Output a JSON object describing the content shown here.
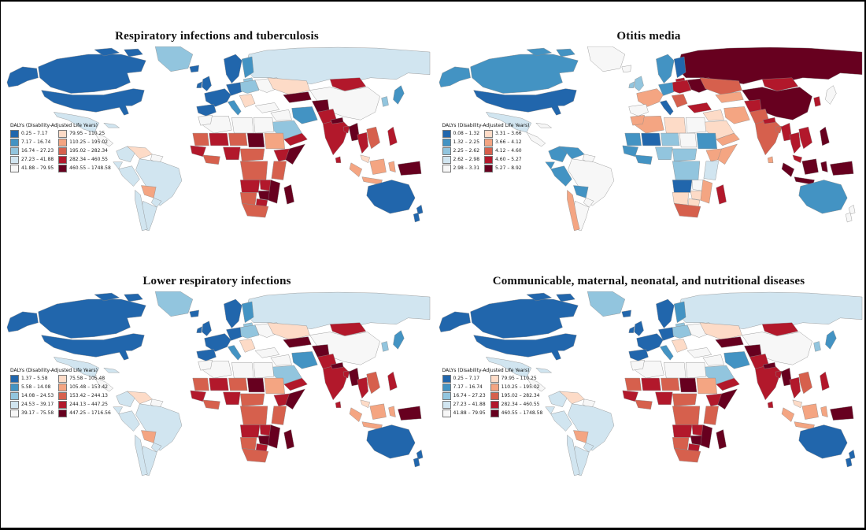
{
  "figure": {
    "background": "#ffffff",
    "frame_border_color": "#000000"
  },
  "palette": {
    "classes": [
      "#2166ac",
      "#4393c3",
      "#92c5de",
      "#d1e5f0",
      "#f7f7f7",
      "#fddbc7",
      "#f4a582",
      "#d6604d",
      "#b2182b",
      "#67001f"
    ],
    "no_data": "#ffffff",
    "country_border": "#888888",
    "ocean": "#ffffff"
  },
  "chart_data": {
    "type": "heatmap",
    "subtype": "choropleth-world-map-grid",
    "layout": "2x2",
    "unit_label": "DALYs (Disability-Adjusted Life Years)",
    "color_scheme": "blue = low burden, red = high burden (RdBu diverging, 10 classes)",
    "maps": [
      {
        "id": "respiratory-tuberculosis",
        "title": "Respiratory infections and tuberculosis",
        "legend_title": "DALYs (Disability-Adjusted Life Years)",
        "legend": {
          "blue": [
            "0.25 – 7.17",
            "7.17 – 16.74",
            "16.74 – 27.23",
            "27.23 – 41.88",
            "41.88 – 79.95"
          ],
          "red": [
            "79.95 – 110.25",
            "110.25 – 195.02",
            "195.02 – 282.34",
            "282.34 – 460.55",
            "460.55 – 1748.58"
          ]
        },
        "regions": {
          "alaska": 1,
          "canada": 1,
          "arctic-1": 1,
          "arctic-2": 1,
          "greenland": 3,
          "usa": 1,
          "mexico": 4,
          "central-america": 5,
          "cuba": 4,
          "colombia": 4,
          "venezuela": 6,
          "guyanas": 5,
          "ecuador": 4,
          "peru": 4,
          "brazil": 4,
          "bolivia": 7,
          "paraguay": 4,
          "argentina": 4,
          "chile": 4,
          "iceland": 1,
          "uk": 1,
          "ireland": 1,
          "norway-sweden": 1,
          "finland": 2,
          "baltics": 3,
          "germany-central": 1,
          "west-europe": 1,
          "iberia": 1,
          "italy": 2,
          "east-europe": 3,
          "balkans": 6,
          "ukraine": 5,
          "russia": 4,
          "kazakhstan": 6,
          "uzbek-turkmen": 10,
          "mongolia": 9,
          "china": 5,
          "korea": 3,
          "japan": 2,
          "turkey": 5,
          "syria-iraq": 5,
          "iran": 2,
          "afghanistan": 10,
          "pakistan": 9,
          "saudi": 3,
          "yemen-oman": 9,
          "algeria": 5,
          "morocco": 5,
          "libya": 5,
          "egypt": 5,
          "mauritania": 8,
          "mali": 9,
          "niger": 8,
          "chad": 10,
          "sudan": 7,
          "senegal-guinea": 9,
          "ivory-ghana": 8,
          "nigeria": 9,
          "cameroon-car": 8,
          "ethiopia": 9,
          "somalia": 10,
          "kenya-tanzania": 8,
          "drc": 8,
          "angola": 9,
          "zambia": 9,
          "zimbabwe": 10,
          "mozambique": 10,
          "namibia": 8,
          "botswana": 9,
          "south-africa": 8,
          "madagascar": 10,
          "india": 9,
          "nepal": 10,
          "bangladesh": 9,
          "sri-lanka": 9,
          "myanmar": 10,
          "thailand": 9,
          "vietnam-laos": 8,
          "malaysia": 6,
          "philippines": 9,
          "sumatra": 7,
          "borneo": 7,
          "java": 7,
          "sulawesi": 7,
          "papua": 10,
          "australia": 1,
          "nz-north": 1,
          "nz-south": 1
        }
      },
      {
        "id": "otitis-media",
        "title": "Otitis media",
        "legend_title": "DALYs (Disability-Adjusted Life Years)",
        "legend": {
          "blue": [
            "0.08 – 1.32",
            "1.32 – 2.25",
            "2.25 – 2.62",
            "2.62 – 2.98",
            "2.98 – 3.31"
          ],
          "red": [
            "3.31 – 3.66",
            "3.66 – 4.12",
            "4.12 – 4.60",
            "4.60 – 5.27",
            "5.27 – 8.92"
          ]
        },
        "regions": {
          "alaska": 2,
          "canada": 2,
          "arctic-1": 2,
          "arctic-2": 2,
          "greenland": 5,
          "usa": 1,
          "mexico": 4,
          "central-america": 5,
          "cuba": 5,
          "colombia": 2,
          "venezuela": 2,
          "guyanas": 5,
          "ecuador": 2,
          "peru": 2,
          "brazil": 5,
          "bolivia": 2,
          "paraguay": 5,
          "argentina": 5,
          "chile": 7,
          "iceland": 5,
          "uk": 3,
          "ireland": 3,
          "norway-sweden": 2,
          "finland": 1,
          "baltics": 9,
          "germany-central": 2,
          "west-europe": 7,
          "iberia": 5,
          "italy": 1,
          "east-europe": 9,
          "balkans": 8,
          "ukraine": 10,
          "russia": 10,
          "kazakhstan": 8,
          "uzbek-turkmen": 7,
          "mongolia": 9,
          "china": 10,
          "korea": 9,
          "japan": 5,
          "turkey": 9,
          "syria-iraq": 6,
          "iran": 7,
          "afghanistan": 9,
          "pakistan": 8,
          "saudi": 6,
          "yemen-oman": 7,
          "algeria": 7,
          "morocco": 7,
          "libya": 6,
          "egypt": 5,
          "mauritania": 2,
          "mali": 1,
          "niger": 3,
          "chad": 5,
          "sudan": 2,
          "senegal-guinea": 2,
          "ivory-ghana": 2,
          "nigeria": 3,
          "cameroon-car": 3,
          "ethiopia": 7,
          "somalia": 7,
          "kenya-tanzania": 4,
          "drc": 3,
          "angola": 1,
          "zambia": 5,
          "zimbabwe": 6,
          "mozambique": 7,
          "namibia": 6,
          "botswana": 6,
          "south-africa": 8,
          "madagascar": 9,
          "india": 8,
          "nepal": 9,
          "bangladesh": 8,
          "sri-lanka": 7,
          "myanmar": 9,
          "thailand": 9,
          "vietnam-laos": 9,
          "malaysia": 9,
          "philippines": 10,
          "sumatra": 10,
          "borneo": 10,
          "java": 10,
          "sulawesi": 10,
          "papua": 10,
          "australia": 2,
          "nz-north": 5,
          "nz-south": 5
        }
      },
      {
        "id": "lower-respiratory-infections",
        "title": "Lower respiratory infections",
        "legend_title": "DALYs (Disability-Adjusted Life Years)",
        "legend": {
          "blue": [
            "1.37 – 5.58",
            "5.58 – 14.08",
            "14.08 – 24.53",
            "24.53 – 39.17",
            "39.17 – 75.58"
          ],
          "red": [
            "75.58 – 105.48",
            "105.48 – 153.42",
            "153.42 – 244.13",
            "244.13 – 447.25",
            "447.25 – 1716.56"
          ]
        },
        "regions": {
          "alaska": 1,
          "canada": 1,
          "arctic-1": 1,
          "arctic-2": 1,
          "greenland": 3,
          "usa": 1,
          "mexico": 4,
          "central-america": 5,
          "cuba": 4,
          "colombia": 4,
          "venezuela": 6,
          "guyanas": 5,
          "ecuador": 4,
          "peru": 4,
          "brazil": 4,
          "bolivia": 7,
          "paraguay": 4,
          "argentina": 4,
          "chile": 4,
          "iceland": 1,
          "uk": 1,
          "ireland": 1,
          "norway-sweden": 1,
          "finland": 2,
          "baltics": 3,
          "germany-central": 1,
          "west-europe": 1,
          "iberia": 1,
          "italy": 2,
          "east-europe": 3,
          "balkans": 6,
          "ukraine": 5,
          "russia": 4,
          "kazakhstan": 6,
          "uzbek-turkmen": 10,
          "mongolia": 9,
          "china": 5,
          "korea": 3,
          "japan": 2,
          "turkey": 5,
          "syria-iraq": 5,
          "iran": 2,
          "afghanistan": 10,
          "pakistan": 9,
          "saudi": 3,
          "yemen-oman": 9,
          "algeria": 5,
          "morocco": 5,
          "libya": 5,
          "egypt": 5,
          "mauritania": 8,
          "mali": 9,
          "niger": 8,
          "chad": 10,
          "sudan": 7,
          "senegal-guinea": 9,
          "ivory-ghana": 8,
          "nigeria": 9,
          "cameroon-car": 8,
          "ethiopia": 9,
          "somalia": 10,
          "kenya-tanzania": 8,
          "drc": 8,
          "angola": 9,
          "zambia": 9,
          "zimbabwe": 10,
          "mozambique": 10,
          "namibia": 8,
          "botswana": 9,
          "south-africa": 8,
          "madagascar": 10,
          "india": 9,
          "nepal": 10,
          "bangladesh": 9,
          "sri-lanka": 9,
          "myanmar": 10,
          "thailand": 9,
          "vietnam-laos": 8,
          "malaysia": 6,
          "philippines": 9,
          "sumatra": 7,
          "borneo": 7,
          "java": 7,
          "sulawesi": 7,
          "papua": 10,
          "australia": 1,
          "nz-north": 1,
          "nz-south": 1
        }
      },
      {
        "id": "communicable-maternal-neonatal-nutritional",
        "title": "Communicable, maternal, neonatal, and nutritional diseases",
        "legend_title": "DALYs (Disability-Adjusted Life Years)",
        "legend": {
          "blue": [
            "0.25 – 7.17",
            "7.17 – 16.74",
            "16.74 – 27.23",
            "27.23 – 41.88",
            "41.88 – 79.95"
          ],
          "red": [
            "79.95 – 110.25",
            "110.25 – 195.02",
            "195.02 – 282.34",
            "282.34 – 460.55",
            "460.55 – 1748.58"
          ]
        },
        "regions": {
          "alaska": 1,
          "canada": 1,
          "arctic-1": 1,
          "arctic-2": 1,
          "greenland": 3,
          "usa": 1,
          "mexico": 4,
          "central-america": 5,
          "cuba": 4,
          "colombia": 4,
          "venezuela": 6,
          "guyanas": 5,
          "ecuador": 4,
          "peru": 4,
          "brazil": 4,
          "bolivia": 7,
          "paraguay": 4,
          "argentina": 4,
          "chile": 4,
          "iceland": 1,
          "uk": 1,
          "ireland": 1,
          "norway-sweden": 1,
          "finland": 2,
          "baltics": 3,
          "germany-central": 1,
          "west-europe": 1,
          "iberia": 1,
          "italy": 2,
          "east-europe": 3,
          "balkans": 6,
          "ukraine": 5,
          "russia": 4,
          "kazakhstan": 6,
          "uzbek-turkmen": 10,
          "mongolia": 9,
          "china": 5,
          "korea": 3,
          "japan": 2,
          "turkey": 5,
          "syria-iraq": 5,
          "iran": 2,
          "afghanistan": 10,
          "pakistan": 9,
          "saudi": 3,
          "yemen-oman": 9,
          "algeria": 5,
          "morocco": 5,
          "libya": 5,
          "egypt": 5,
          "mauritania": 8,
          "mali": 9,
          "niger": 8,
          "chad": 10,
          "sudan": 7,
          "senegal-guinea": 9,
          "ivory-ghana": 8,
          "nigeria": 9,
          "cameroon-car": 8,
          "ethiopia": 9,
          "somalia": 10,
          "kenya-tanzania": 8,
          "drc": 8,
          "angola": 9,
          "zambia": 9,
          "zimbabwe": 10,
          "mozambique": 10,
          "namibia": 8,
          "botswana": 9,
          "south-africa": 8,
          "madagascar": 10,
          "india": 9,
          "nepal": 10,
          "bangladesh": 9,
          "sri-lanka": 9,
          "myanmar": 10,
          "thailand": 9,
          "vietnam-laos": 8,
          "malaysia": 6,
          "philippines": 9,
          "sumatra": 7,
          "borneo": 7,
          "java": 7,
          "sulawesi": 7,
          "papua": 10,
          "australia": 1,
          "nz-north": 1,
          "nz-south": 1
        }
      }
    ]
  }
}
